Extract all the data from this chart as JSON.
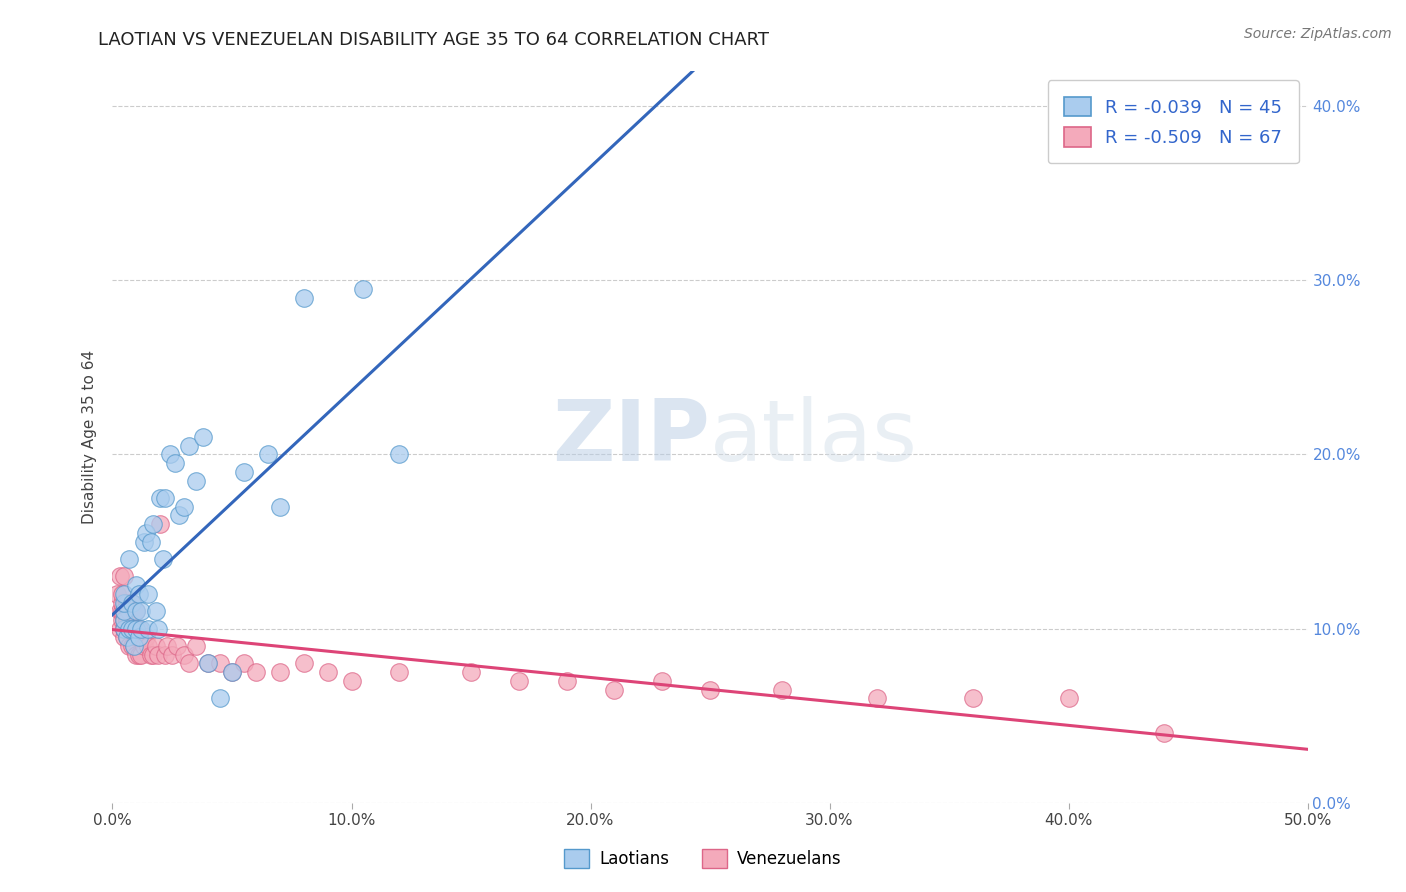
{
  "title": "LAOTIAN VS VENEZUELAN DISABILITY AGE 35 TO 64 CORRELATION CHART",
  "source": "Source: ZipAtlas.com",
  "ylabel": "Disability Age 35 to 64",
  "xlim": [
    0.0,
    0.5
  ],
  "ylim": [
    0.0,
    0.42
  ],
  "xtick_values": [
    0.0,
    0.1,
    0.2,
    0.3,
    0.4,
    0.5
  ],
  "ytick_values": [
    0.0,
    0.1,
    0.2,
    0.3,
    0.4
  ],
  "laotian_R": -0.039,
  "laotian_N": 45,
  "venezuelan_R": -0.509,
  "venezuelan_N": 67,
  "laotian_color": "#aaccee",
  "venezuelan_color": "#f4aabb",
  "laotian_edge_color": "#5599cc",
  "venezuelan_edge_color": "#dd6688",
  "laotian_line_color": "#3366bb",
  "venezuelan_line_color": "#dd4477",
  "background_color": "#ffffff",
  "grid_color": "#cccccc",
  "laotian_x": [
    0.005,
    0.005,
    0.005,
    0.005,
    0.005,
    0.006,
    0.007,
    0.007,
    0.008,
    0.008,
    0.009,
    0.01,
    0.01,
    0.01,
    0.011,
    0.011,
    0.012,
    0.012,
    0.013,
    0.014,
    0.015,
    0.015,
    0.016,
    0.017,
    0.018,
    0.019,
    0.02,
    0.021,
    0.022,
    0.024,
    0.026,
    0.028,
    0.03,
    0.032,
    0.035,
    0.038,
    0.04,
    0.045,
    0.05,
    0.055,
    0.065,
    0.07,
    0.08,
    0.105,
    0.12
  ],
  "laotian_y": [
    0.1,
    0.105,
    0.11,
    0.115,
    0.12,
    0.095,
    0.1,
    0.14,
    0.1,
    0.115,
    0.09,
    0.1,
    0.11,
    0.125,
    0.095,
    0.12,
    0.1,
    0.11,
    0.15,
    0.155,
    0.1,
    0.12,
    0.15,
    0.16,
    0.11,
    0.1,
    0.175,
    0.14,
    0.175,
    0.2,
    0.195,
    0.165,
    0.17,
    0.205,
    0.185,
    0.21,
    0.08,
    0.06,
    0.075,
    0.19,
    0.2,
    0.17,
    0.29,
    0.295,
    0.2
  ],
  "venezuelan_x": [
    0.002,
    0.003,
    0.003,
    0.003,
    0.004,
    0.004,
    0.004,
    0.004,
    0.005,
    0.005,
    0.005,
    0.005,
    0.005,
    0.006,
    0.006,
    0.006,
    0.007,
    0.007,
    0.007,
    0.008,
    0.008,
    0.008,
    0.009,
    0.009,
    0.009,
    0.01,
    0.01,
    0.01,
    0.011,
    0.011,
    0.012,
    0.013,
    0.014,
    0.015,
    0.016,
    0.017,
    0.018,
    0.019,
    0.02,
    0.022,
    0.023,
    0.025,
    0.027,
    0.03,
    0.032,
    0.035,
    0.04,
    0.045,
    0.05,
    0.055,
    0.06,
    0.07,
    0.08,
    0.09,
    0.1,
    0.12,
    0.15,
    0.17,
    0.19,
    0.21,
    0.23,
    0.25,
    0.28,
    0.32,
    0.36,
    0.4,
    0.44
  ],
  "venezuelan_y": [
    0.12,
    0.1,
    0.11,
    0.13,
    0.105,
    0.11,
    0.115,
    0.12,
    0.095,
    0.1,
    0.105,
    0.11,
    0.13,
    0.095,
    0.105,
    0.115,
    0.09,
    0.1,
    0.11,
    0.09,
    0.1,
    0.115,
    0.09,
    0.1,
    0.11,
    0.085,
    0.095,
    0.11,
    0.085,
    0.1,
    0.085,
    0.09,
    0.095,
    0.09,
    0.085,
    0.085,
    0.09,
    0.085,
    0.16,
    0.085,
    0.09,
    0.085,
    0.09,
    0.085,
    0.08,
    0.09,
    0.08,
    0.08,
    0.075,
    0.08,
    0.075,
    0.075,
    0.08,
    0.075,
    0.07,
    0.075,
    0.075,
    0.07,
    0.07,
    0.065,
    0.07,
    0.065,
    0.065,
    0.06,
    0.06,
    0.06,
    0.04
  ]
}
